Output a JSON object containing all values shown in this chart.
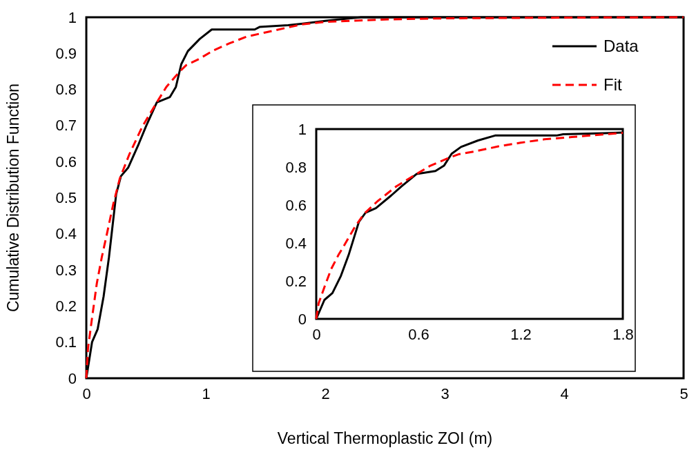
{
  "chart_data": [
    {
      "type": "line",
      "xlabel": "Vertical Thermoplastic ZOI (m)",
      "ylabel": "Cumulative Distribution Function",
      "xlim": [
        0,
        5
      ],
      "xticks": [
        0,
        1,
        2,
        3,
        4,
        5
      ],
      "ylim": [
        0,
        1
      ],
      "yticks": [
        0,
        0.1,
        0.2,
        0.3,
        0.4,
        0.5,
        0.6,
        0.7,
        0.8,
        0.9,
        1
      ],
      "grid": false,
      "legend": "top right",
      "marker": "none",
      "series": [
        {
          "name": "Data",
          "color": "#000000",
          "line_style": "solid",
          "x": [
            0,
            0.048,
            0.095,
            0.145,
            0.19,
            0.25,
            0.29,
            0.35,
            0.44,
            0.5,
            0.59,
            0.7,
            0.75,
            0.795,
            0.85,
            0.95,
            1.05,
            1.41,
            1.45,
            1.69,
            1.8,
            2.0,
            2.3,
            5
          ],
          "values": [
            0,
            0.1,
            0.136,
            0.227,
            0.336,
            0.51,
            0.56,
            0.583,
            0.65,
            0.698,
            0.764,
            0.779,
            0.807,
            0.87,
            0.906,
            0.94,
            0.966,
            0.966,
            0.973,
            0.978,
            0.982,
            0.99,
            1,
            1
          ]
        },
        {
          "name": "Fit",
          "color": "#ff0000",
          "line_style": "dashed",
          "x": [
            0,
            0.014,
            0.048,
            0.088,
            0.13,
            0.17,
            0.224,
            0.28,
            0.36,
            0.47,
            0.59,
            0.67,
            0.78,
            0.835,
            0.93,
            1.07,
            1.2,
            1.34,
            1.5,
            1.8,
            2.0,
            2.5,
            3,
            4,
            5
          ],
          "values": [
            0,
            0.082,
            0.167,
            0.263,
            0.336,
            0.396,
            0.48,
            0.553,
            0.62,
            0.698,
            0.764,
            0.807,
            0.849,
            0.867,
            0.882,
            0.909,
            0.928,
            0.946,
            0.958,
            0.98,
            0.987,
            0.994,
            0.997,
            0.999,
            1
          ]
        }
      ]
    },
    {
      "type": "line",
      "xlim": [
        0,
        1.8
      ],
      "xticks": [
        0,
        0.6,
        1.2,
        1.8
      ],
      "ylim": [
        0,
        1
      ],
      "yticks": [
        0,
        0.2,
        0.4,
        0.6,
        0.8,
        1
      ],
      "grid": false,
      "marker": "none",
      "series": [
        {
          "color": "#000000",
          "line_style": "solid",
          "x": [
            0,
            0.048,
            0.095,
            0.145,
            0.19,
            0.25,
            0.29,
            0.35,
            0.44,
            0.5,
            0.59,
            0.7,
            0.75,
            0.795,
            0.85,
            0.95,
            1.05,
            1.41,
            1.45,
            1.69,
            1.8
          ],
          "values": [
            0,
            0.1,
            0.136,
            0.227,
            0.336,
            0.51,
            0.56,
            0.583,
            0.65,
            0.698,
            0.764,
            0.779,
            0.807,
            0.87,
            0.906,
            0.94,
            0.966,
            0.966,
            0.973,
            0.978,
            0.982
          ]
        },
        {
          "color": "#ff0000",
          "line_style": "dashed",
          "x": [
            0,
            0.014,
            0.048,
            0.088,
            0.13,
            0.17,
            0.224,
            0.28,
            0.36,
            0.47,
            0.59,
            0.67,
            0.78,
            0.835,
            0.93,
            1.07,
            1.2,
            1.34,
            1.5,
            1.8
          ],
          "values": [
            0,
            0.082,
            0.167,
            0.263,
            0.336,
            0.396,
            0.48,
            0.553,
            0.62,
            0.698,
            0.764,
            0.807,
            0.849,
            0.867,
            0.882,
            0.909,
            0.928,
            0.946,
            0.958,
            0.98
          ]
        }
      ]
    }
  ]
}
